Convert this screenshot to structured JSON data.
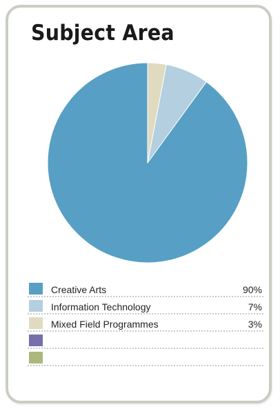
{
  "chart_data": {
    "type": "pie",
    "title": "Subject Area",
    "slices": [
      {
        "label": "Creative Arts",
        "value": 90,
        "value_text": "90%",
        "color": "#579fc4"
      },
      {
        "label": "Information Technology",
        "value": 7,
        "value_text": "7%",
        "color": "#b3cfe0"
      },
      {
        "label": "Mixed Field Programmes",
        "value": 3,
        "value_text": "3%",
        "color": "#e0dbc0"
      }
    ],
    "legend_empty_swatches": [
      "#7570ab",
      "#acb77c"
    ],
    "legend_placement": "bottom"
  }
}
